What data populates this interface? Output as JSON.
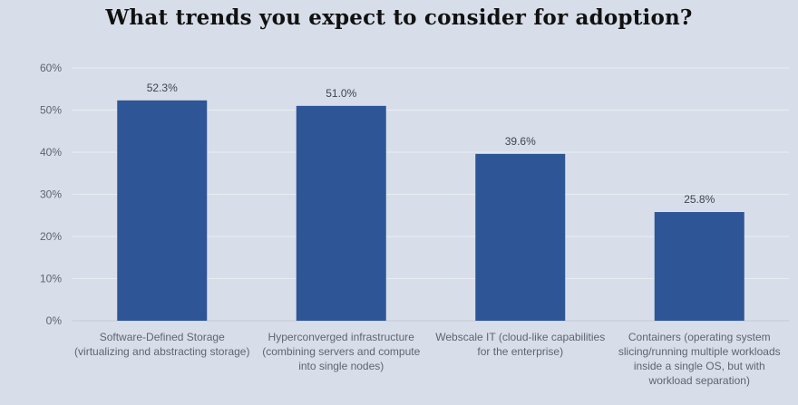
{
  "chart_data": {
    "type": "bar",
    "title": "What trends you expect to consider for adoption?",
    "categories": [
      "Software-Defined Storage (virtualizing and abstracting storage)",
      "Hyperconverged infrastructure (combining servers and compute into single nodes)",
      "Webscale IT (cloud-like capabilities for the enterprise)",
      "Containers (operating system slicing/running multiple workloads inside a single OS, but with workload separation)"
    ],
    "values": [
      52.3,
      51.0,
      39.6,
      25.8
    ],
    "value_labels": [
      "52.3%",
      "51.0%",
      "39.6%",
      "25.8%"
    ],
    "xlabel": "",
    "ylabel": "",
    "ylim": [
      0,
      60
    ],
    "y_ticks": [
      0,
      10,
      20,
      30,
      40,
      50,
      60
    ],
    "y_tick_labels": [
      "0%",
      "10%",
      "20%",
      "30%",
      "40%",
      "50%",
      "60%"
    ],
    "grid": true,
    "legend": "none",
    "colors": {
      "bar": "#2e5596",
      "background": "#d8dee9",
      "grid": "#e9edf3",
      "baseline": "#c3c9d3"
    }
  }
}
